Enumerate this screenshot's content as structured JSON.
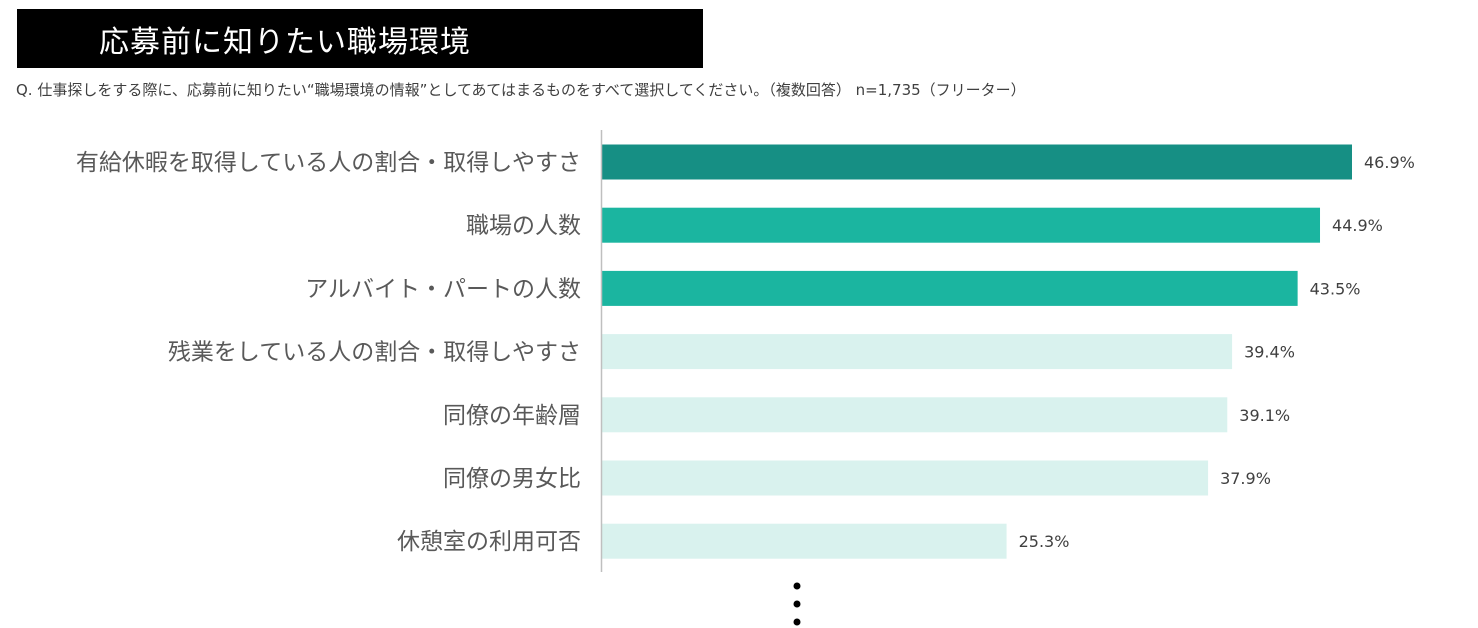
{
  "title": "応募前に知りたい職場環境",
  "question": "Q. 仕事探しをする際に、応募前に知りたい“職場環境の情報”としてあてはまるものをすべて選択してください。（複数回答） n=1,735（フリーター）",
  "chart_data": {
    "type": "bar",
    "orientation": "horizontal",
    "categories": [
      "有給休暇を取得している人の割合・取得しやすさ",
      "職場の人数",
      "アルバイト・パートの人数",
      "残業をしている人の割合・取得しやすさ",
      "同僚の年齢層",
      "同僚の男女比",
      "休憩室の利用可否"
    ],
    "values": [
      46.9,
      44.9,
      43.5,
      39.4,
      39.1,
      37.9,
      25.3
    ],
    "value_labels": [
      "46.9%",
      "44.9%",
      "43.5%",
      "39.4%",
      "39.1%",
      "37.9%",
      "25.3%"
    ],
    "unit": "%",
    "xlim": [
      0,
      55
    ],
    "bar_colors": [
      "#168f84",
      "#1bb5a0",
      "#1bb5a0",
      "#d9f2ee",
      "#d9f2ee",
      "#d9f2ee",
      "#d9f2ee"
    ],
    "continuation_marker": "vertical-ellipsis"
  }
}
